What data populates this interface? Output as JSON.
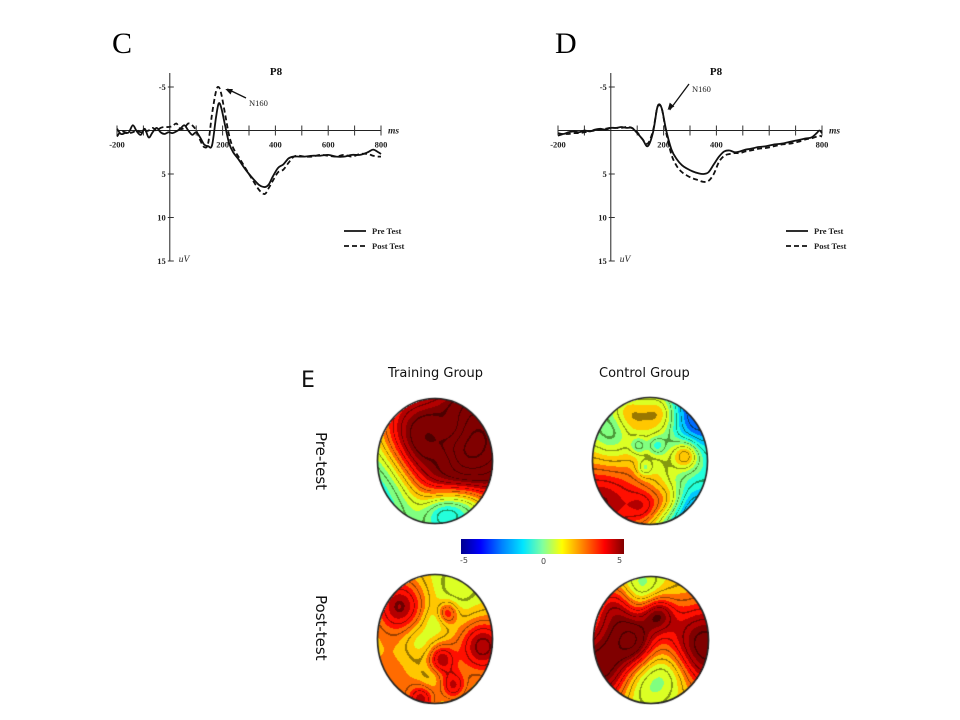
{
  "panels": {
    "C": {
      "letter": "C"
    },
    "D": {
      "letter": "D"
    },
    "E": {
      "letter": "E"
    }
  },
  "chart_data": [
    {
      "id": "C",
      "type": "line",
      "title": "P8",
      "xlabel": "ms",
      "ylabel": "uV",
      "xlim": [
        -200,
        800
      ],
      "ylim": [
        -5,
        15
      ],
      "y_inverted": true,
      "xticks": [
        -200,
        200,
        400,
        600,
        800
      ],
      "xtick_labels": [
        "-200",
        "200",
        "400",
        "600",
        "800"
      ],
      "xminor_ticks": [
        -100,
        100,
        300,
        500,
        700
      ],
      "yticks": [
        -5,
        5,
        10,
        15
      ],
      "ytick_labels": [
        "-5",
        "5",
        "10",
        "15"
      ],
      "annotation": {
        "text": "N160",
        "x": 180
      },
      "legend": {
        "position": "bottom-right",
        "entries": [
          "Pre  Test",
          "Post Test"
        ]
      },
      "series": [
        {
          "name": "Pre Test",
          "style": "solid",
          "x": [
            -200,
            -185,
            -170,
            -155,
            -140,
            -125,
            -110,
            -95,
            -80,
            -65,
            -50,
            -35,
            -20,
            -5,
            10,
            25,
            40,
            55,
            70,
            85,
            100,
            115,
            130,
            145,
            160,
            175,
            185,
            195,
            210,
            225,
            240,
            260,
            280,
            300,
            320,
            340,
            360,
            375,
            390,
            410,
            430,
            450,
            470,
            490,
            510,
            540,
            570,
            600,
            630,
            660,
            690,
            720,
            750,
            770,
            790,
            800
          ],
          "values": [
            -0.2,
            0.4,
            0.3,
            0.2,
            -0.6,
            0.1,
            0.5,
            -0.2,
            0.8,
            0.2,
            -0.3,
            0.2,
            0.4,
            0.2,
            0.3,
            0.1,
            -0.2,
            -0.6,
            0.0,
            0.5,
            0.2,
            0.8,
            1.6,
            1.8,
            1.7,
            -1.5,
            -3.1,
            -2.6,
            -0.5,
            1.5,
            2.5,
            3.3,
            4.2,
            5.0,
            5.7,
            6.3,
            6.5,
            6.2,
            5.3,
            4.3,
            3.9,
            3.2,
            3.0,
            3.0,
            3.0,
            2.9,
            2.9,
            2.8,
            3.0,
            3.0,
            2.8,
            2.8,
            2.5,
            2.2,
            2.5,
            2.7
          ]
        },
        {
          "name": "Post Test",
          "style": "dashed",
          "x": [
            -200,
            -185,
            -170,
            -155,
            -140,
            -125,
            -110,
            -95,
            -80,
            -65,
            -50,
            -35,
            -20,
            -5,
            10,
            25,
            40,
            55,
            70,
            85,
            100,
            115,
            130,
            145,
            160,
            175,
            185,
            195,
            210,
            225,
            240,
            260,
            280,
            300,
            320,
            340,
            360,
            375,
            390,
            410,
            430,
            450,
            470,
            490,
            510,
            540,
            570,
            600,
            630,
            660,
            690,
            720,
            750,
            770,
            790,
            800
          ],
          "values": [
            0.7,
            0.1,
            0.2,
            0.3,
            0.2,
            0.0,
            0.2,
            0.1,
            0.0,
            -0.3,
            0.0,
            -0.3,
            -0.4,
            -0.4,
            -0.5,
            -0.8,
            -0.2,
            -0.3,
            -0.8,
            -0.6,
            0.0,
            1.1,
            1.9,
            1.5,
            -1.9,
            -4.5,
            -5.0,
            -4.2,
            -1.8,
            0.6,
            2.0,
            3.0,
            4.0,
            5.0,
            6.0,
            6.9,
            7.3,
            6.6,
            5.8,
            4.8,
            4.5,
            3.7,
            3.0,
            2.9,
            3.0,
            3.0,
            2.8,
            2.9,
            3.0,
            2.8,
            3.0,
            2.7,
            2.7,
            2.9,
            3.0,
            3.0
          ]
        }
      ]
    },
    {
      "id": "D",
      "type": "line",
      "title": "P8",
      "xlabel": "ms",
      "ylabel": "uV",
      "xlim": [
        -200,
        800
      ],
      "ylim": [
        -5,
        15
      ],
      "y_inverted": true,
      "xticks": [
        -200,
        200,
        400,
        800
      ],
      "xtick_labels": [
        "-200",
        "200",
        "400",
        "800"
      ],
      "xminor_ticks": [
        -100,
        100,
        300,
        500,
        600,
        700
      ],
      "yticks": [
        -5,
        5,
        10,
        15
      ],
      "ytick_labels": [
        "-5",
        "5",
        "10",
        "15"
      ],
      "annotation": {
        "text": "N160",
        "x": 185
      },
      "legend": {
        "position": "bottom-right",
        "entries": [
          "Pre  Test",
          "Post Test"
        ]
      },
      "series": [
        {
          "name": "Pre Test",
          "style": "solid",
          "x": [
            -200,
            -180,
            -160,
            -140,
            -120,
            -100,
            -80,
            -60,
            -40,
            -20,
            0,
            20,
            40,
            60,
            80,
            100,
            120,
            140,
            160,
            175,
            185,
            195,
            210,
            230,
            250,
            270,
            290,
            310,
            330,
            350,
            370,
            390,
            410,
            430,
            450,
            470,
            490,
            510,
            530,
            560,
            590,
            620,
            650,
            680,
            710,
            740,
            760,
            780,
            790,
            800
          ],
          "values": [
            0.3,
            0.4,
            0.2,
            0.1,
            0.2,
            0.0,
            0.1,
            -0.1,
            -0.2,
            -0.1,
            -0.3,
            -0.3,
            -0.4,
            -0.3,
            -0.3,
            0.3,
            1.0,
            1.8,
            0.2,
            -2.5,
            -3.0,
            -2.3,
            0.0,
            2.2,
            3.3,
            4.0,
            4.4,
            4.7,
            4.9,
            5.0,
            4.8,
            3.9,
            3.0,
            2.4,
            2.3,
            2.5,
            2.4,
            2.2,
            2.1,
            1.9,
            1.8,
            1.6,
            1.5,
            1.3,
            1.1,
            0.9,
            0.8,
            0.3,
            0.0,
            0.3
          ]
        },
        {
          "name": "Post Test",
          "style": "dashed",
          "x": [
            -200,
            -180,
            -160,
            -140,
            -120,
            -100,
            -80,
            -60,
            -40,
            -20,
            0,
            20,
            40,
            60,
            80,
            100,
            120,
            140,
            160,
            175,
            185,
            195,
            210,
            230,
            250,
            270,
            290,
            310,
            330,
            350,
            370,
            390,
            410,
            430,
            450,
            470,
            490,
            510,
            530,
            560,
            590,
            620,
            650,
            680,
            710,
            740,
            760,
            780,
            790,
            800
          ],
          "values": [
            0.6,
            0.4,
            0.4,
            0.3,
            0.3,
            0.2,
            0.1,
            0.0,
            -0.1,
            -0.2,
            -0.3,
            -0.3,
            -0.3,
            -0.4,
            -0.3,
            0.2,
            1.0,
            1.5,
            0.0,
            -2.5,
            -2.9,
            -2.3,
            0.3,
            2.8,
            4.1,
            4.8,
            5.2,
            5.5,
            5.7,
            5.9,
            5.8,
            5.0,
            3.6,
            2.9,
            2.7,
            2.6,
            2.6,
            2.4,
            2.3,
            2.1,
            2.0,
            1.8,
            1.6,
            1.5,
            1.3,
            1.0,
            0.9,
            0.7,
            0.6,
            0.7
          ]
        }
      ]
    },
    {
      "id": "E",
      "type": "heatmap",
      "title": "Topographic maps",
      "columns": [
        "Training Group",
        "Control Group"
      ],
      "rows": [
        "Pre-test",
        "Post-test"
      ],
      "colorbar": {
        "min": -5,
        "max": 5,
        "tick_labels": [
          "-5",
          "0",
          "5"
        ],
        "colormap": "jet"
      }
    }
  ],
  "topo": {
    "col_labels": [
      "Training Group",
      "Control Group"
    ],
    "row_labels": [
      "Pre-test",
      "Post-test"
    ],
    "colorbar_ticks": [
      "-5",
      "0",
      "5"
    ],
    "maps": [
      {
        "name": "training-pre",
        "base": 0.5,
        "blobs": [
          [
            0.92,
            0.1,
            0.35,
            4.6
          ],
          [
            0.85,
            0.5,
            0.3,
            4.0
          ],
          [
            0.45,
            0.55,
            0.3,
            2.8
          ],
          [
            0.3,
            0.3,
            0.2,
            1.8
          ],
          [
            0.05,
            0.75,
            0.3,
            -2.5
          ],
          [
            0.75,
            0.85,
            0.15,
            -3.0
          ],
          [
            0.55,
            0.9,
            0.12,
            -2.3
          ],
          [
            0.62,
            0.25,
            0.1,
            -1.6
          ],
          [
            0.2,
            0.1,
            0.2,
            1.2
          ],
          [
            0.5,
            0.45,
            0.08,
            -0.8
          ],
          [
            0.6,
            0.5,
            0.08,
            -0.8
          ]
        ]
      },
      {
        "name": "control-pre",
        "base": -0.2,
        "blobs": [
          [
            0.08,
            0.8,
            0.3,
            4.8
          ],
          [
            0.9,
            0.1,
            0.22,
            -3.5
          ],
          [
            0.88,
            0.95,
            0.18,
            -3.0
          ],
          [
            0.3,
            0.15,
            0.12,
            2.0
          ],
          [
            0.6,
            0.12,
            0.12,
            2.6
          ],
          [
            0.8,
            0.45,
            0.08,
            2.8
          ],
          [
            0.2,
            0.25,
            0.12,
            -1.5
          ],
          [
            0.5,
            0.45,
            0.2,
            0.8
          ],
          [
            0.4,
            0.38,
            0.05,
            -1.5
          ],
          [
            0.55,
            0.38,
            0.05,
            -1.5
          ],
          [
            0.45,
            0.55,
            0.05,
            -1.5
          ],
          [
            0.65,
            0.8,
            0.1,
            1.6
          ],
          [
            0.45,
            0.85,
            0.1,
            1.8
          ],
          [
            0.15,
            0.5,
            0.15,
            -0.8
          ]
        ]
      },
      {
        "name": "training-post",
        "base": 1.6,
        "blobs": [
          [
            0.2,
            0.25,
            0.15,
            3.0
          ],
          [
            0.9,
            0.55,
            0.15,
            3.2
          ],
          [
            0.7,
            0.1,
            0.2,
            -1.0
          ],
          [
            0.35,
            0.5,
            0.1,
            -0.9
          ],
          [
            0.5,
            0.35,
            0.08,
            -0.8
          ],
          [
            0.55,
            0.65,
            0.08,
            2.6
          ],
          [
            0.65,
            0.85,
            0.08,
            2.4
          ],
          [
            0.45,
            0.8,
            0.08,
            -0.5
          ],
          [
            0.38,
            0.95,
            0.08,
            2.5
          ],
          [
            0.6,
            0.3,
            0.06,
            2.4
          ],
          [
            0.1,
            0.8,
            0.2,
            0.9
          ]
        ]
      },
      {
        "name": "control-post",
        "base": 1.3,
        "blobs": [
          [
            0.95,
            0.55,
            0.25,
            4.6
          ],
          [
            0.08,
            0.7,
            0.22,
            4.6
          ],
          [
            0.35,
            0.5,
            0.12,
            3.2
          ],
          [
            0.55,
            0.3,
            0.1,
            3.0
          ],
          [
            0.4,
            0.1,
            0.12,
            -1.6
          ],
          [
            0.65,
            0.75,
            0.15,
            -1.9
          ],
          [
            0.38,
            0.85,
            0.15,
            -1.4
          ],
          [
            0.2,
            0.25,
            0.15,
            2.7
          ]
        ]
      }
    ]
  }
}
